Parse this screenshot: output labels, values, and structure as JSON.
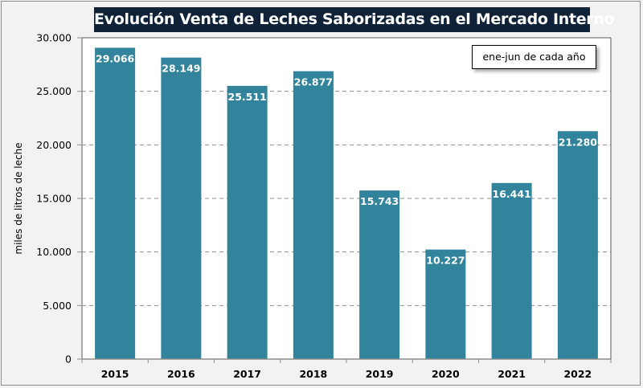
{
  "chart_data": {
    "type": "bar",
    "title": "Evolución Venta de Leches Saborizadas en el Mercado Interno",
    "annotation": "ene-jun de cada año",
    "xlabel": "",
    "ylabel": "miles de litros de leche",
    "categories": [
      "2015",
      "2016",
      "2017",
      "2018",
      "2019",
      "2020",
      "2021",
      "2022"
    ],
    "values": [
      29066,
      28149,
      25511,
      26877,
      15743,
      10227,
      16441,
      21280
    ],
    "value_labels": [
      "29.066",
      "28.149",
      "25.511",
      "26.877",
      "15.743",
      "10.227",
      "16.441",
      "21.280"
    ],
    "ylim": [
      0,
      30000
    ],
    "yticks": [
      0,
      5000,
      10000,
      15000,
      20000,
      25000,
      30000
    ],
    "ytick_labels": [
      "0",
      "5.000",
      "10.000",
      "15.000",
      "20.000",
      "25.000",
      "30.000"
    ],
    "grid": "horizontal dashed",
    "bar_color": "#31849b",
    "title_bg": "#0f2238"
  }
}
